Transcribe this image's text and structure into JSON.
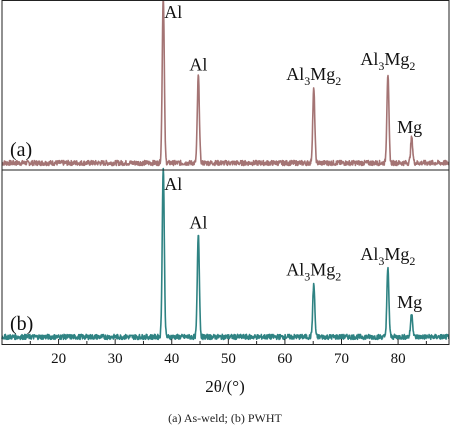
{
  "chart_data": {
    "type": "line",
    "xlabel": "2θ/(°)",
    "xlim": [
      10,
      89
    ],
    "xticks": [
      20,
      30,
      40,
      50,
      60,
      70,
      80
    ],
    "ylabel": "",
    "grid": false,
    "series": [
      {
        "name": "(a)",
        "color": "#a47474",
        "baseline": 0.03,
        "peaks": [
          {
            "x": 38.5,
            "height": 1.0
          },
          {
            "x": 44.7,
            "height": 0.52
          },
          {
            "x": 65.1,
            "height": 0.44
          },
          {
            "x": 78.2,
            "height": 0.53
          },
          {
            "x": 82.4,
            "height": 0.15
          }
        ],
        "annotations": [
          {
            "x": 38.5,
            "text": "Al"
          },
          {
            "x": 44.7,
            "text": "Al"
          },
          {
            "x": 65.1,
            "text": "Al",
            "sub1": "3",
            "mid": "Mg",
            "sub2": "2"
          },
          {
            "x": 78.2,
            "text": "Al",
            "sub1": "3",
            "mid": "Mg",
            "sub2": "2"
          },
          {
            "x": 82.4,
            "text": "Mg"
          }
        ]
      },
      {
        "name": "(b)",
        "color": "#2f8383",
        "baseline": 0.03,
        "peaks": [
          {
            "x": 38.5,
            "height": 1.0
          },
          {
            "x": 44.7,
            "height": 0.61
          },
          {
            "x": 65.1,
            "height": 0.31
          },
          {
            "x": 78.2,
            "height": 0.4
          },
          {
            "x": 82.4,
            "height": 0.14
          }
        ],
        "annotations": [
          {
            "x": 38.5,
            "text": "Al"
          },
          {
            "x": 44.7,
            "text": "Al"
          },
          {
            "x": 65.1,
            "text": "Al",
            "sub1": "3",
            "mid": "Mg",
            "sub2": "2"
          },
          {
            "x": 78.2,
            "text": "Al",
            "sub1": "3",
            "mid": "Mg",
            "sub2": "2"
          },
          {
            "x": 82.4,
            "text": "Mg"
          }
        ]
      }
    ]
  },
  "caption": "(a) As-weld; (b) PWHT"
}
